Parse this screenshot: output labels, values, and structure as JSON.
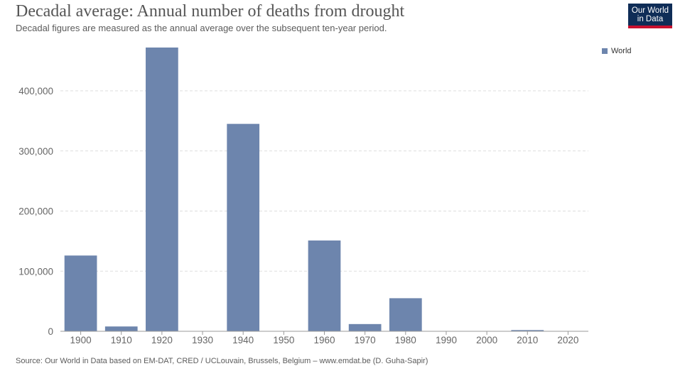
{
  "header": {
    "title": "Decadal average: Annual number of deaths from drought",
    "subtitle": "Decadal figures are measured as the annual average over the subsequent ten-year period."
  },
  "logo": {
    "line1": "Our World",
    "line2": "in Data"
  },
  "footer": {
    "source": "Source: Our World in Data based on EM-DAT, CRED / UCLouvain, Brussels, Belgium – www.emdat.be (D. Guha-Sapir)"
  },
  "colors": {
    "bar": "#6d85ad",
    "grid": "#dddddd",
    "axis": "#999999",
    "logo_bg": "#0f2d57",
    "logo_accent": "#c8102e"
  },
  "chart_data": {
    "type": "bar",
    "categories": [
      "1900",
      "1910",
      "1920",
      "1930",
      "1940",
      "1950",
      "1960",
      "1970",
      "1980",
      "1990",
      "2000",
      "2010",
      "2020"
    ],
    "series": [
      {
        "name": "World",
        "values": [
          126000,
          8000,
          472000,
          0,
          345000,
          0,
          151000,
          12000,
          55000,
          200,
          100,
          2000,
          300
        ]
      }
    ],
    "ylim": [
      0,
      472000
    ],
    "yticks": [
      0,
      100000,
      200000,
      300000,
      400000
    ],
    "ytick_labels": [
      "0",
      "100,000",
      "200,000",
      "300,000",
      "400,000"
    ],
    "grid": true,
    "legend_position": "top-right"
  }
}
